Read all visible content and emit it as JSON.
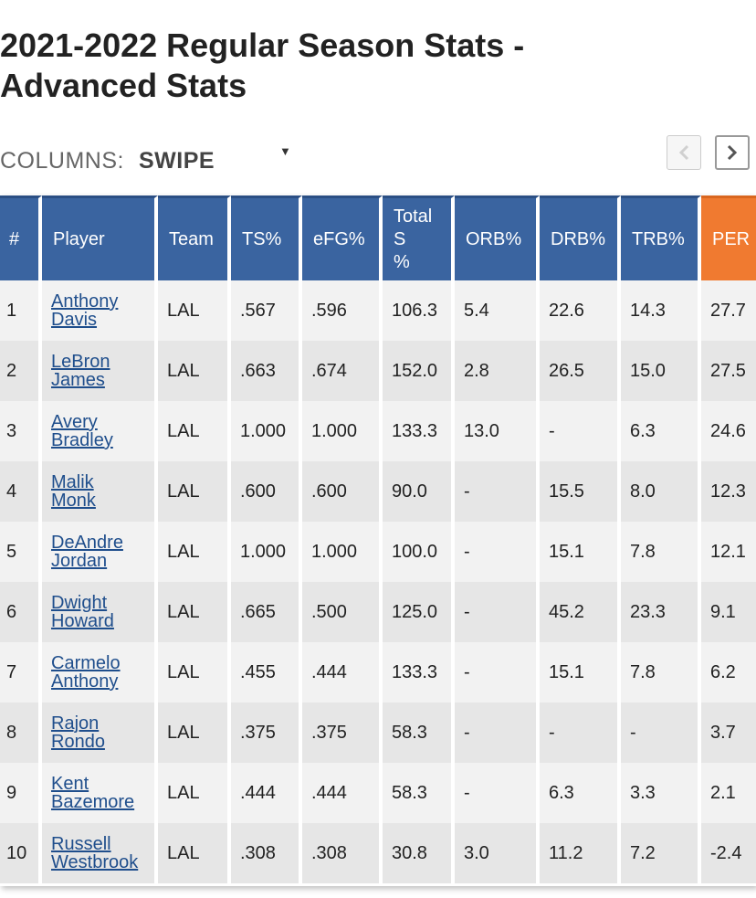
{
  "page": {
    "title_line1": "2021-2022 Regular Season Stats -",
    "title_line2": "Advanced Stats"
  },
  "columns_control": {
    "label": "COLUMNS:",
    "selected": "SWIPE",
    "caret": "▼"
  },
  "nav": {
    "prev_icon": "chevron-left-icon",
    "next_icon": "chevron-right-icon"
  },
  "colors": {
    "header_bg": "#3a64a0",
    "sorted_header_bg": "#f07a30",
    "link": "#1f4e8c"
  },
  "table": {
    "headers": [
      {
        "label": "#"
      },
      {
        "label": "Player"
      },
      {
        "label": "Team"
      },
      {
        "label": "TS%"
      },
      {
        "label": "eFG%"
      },
      {
        "label": "Total S %"
      },
      {
        "label": "ORB%"
      },
      {
        "label": "DRB%"
      },
      {
        "label": "TRB%"
      },
      {
        "label": "PER"
      }
    ],
    "rows": [
      {
        "rank": "1",
        "first": "Anthony",
        "last": "Davis",
        "team": "LAL",
        "ts": ".567",
        "efg": ".596",
        "total_s": "106.3",
        "orb": "5.4",
        "drb": "22.6",
        "trb": "14.3",
        "per": "27.7"
      },
      {
        "rank": "2",
        "first": "LeBron",
        "last": "James",
        "team": "LAL",
        "ts": ".663",
        "efg": ".674",
        "total_s": "152.0",
        "orb": "2.8",
        "drb": "26.5",
        "trb": "15.0",
        "per": "27.5"
      },
      {
        "rank": "3",
        "first": "Avery",
        "last": "Bradley",
        "team": "LAL",
        "ts": "1.000",
        "efg": "1.000",
        "total_s": "133.3",
        "orb": "13.0",
        "drb": "-",
        "trb": "6.3",
        "per": "24.6"
      },
      {
        "rank": "4",
        "first": "Malik",
        "last": "Monk",
        "team": "LAL",
        "ts": ".600",
        "efg": ".600",
        "total_s": "90.0",
        "orb": "-",
        "drb": "15.5",
        "trb": "8.0",
        "per": "12.3"
      },
      {
        "rank": "5",
        "first": "DeAndre",
        "last": "Jordan",
        "team": "LAL",
        "ts": "1.000",
        "efg": "1.000",
        "total_s": "100.0",
        "orb": "-",
        "drb": "15.1",
        "trb": "7.8",
        "per": "12.1"
      },
      {
        "rank": "6",
        "first": "Dwight",
        "last": "Howard",
        "team": "LAL",
        "ts": ".665",
        "efg": ".500",
        "total_s": "125.0",
        "orb": "-",
        "drb": "45.2",
        "trb": "23.3",
        "per": "9.1"
      },
      {
        "rank": "7",
        "first": "Carmelo",
        "last": "Anthony",
        "team": "LAL",
        "ts": ".455",
        "efg": ".444",
        "total_s": "133.3",
        "orb": "-",
        "drb": "15.1",
        "trb": "7.8",
        "per": "6.2"
      },
      {
        "rank": "8",
        "first": "Rajon",
        "last": "Rondo",
        "team": "LAL",
        "ts": ".375",
        "efg": ".375",
        "total_s": "58.3",
        "orb": "-",
        "drb": "-",
        "trb": "-",
        "per": "3.7"
      },
      {
        "rank": "9",
        "first": "Kent",
        "last": "Bazemore",
        "team": "LAL",
        "ts": ".444",
        "efg": ".444",
        "total_s": "58.3",
        "orb": "-",
        "drb": "6.3",
        "trb": "3.3",
        "per": "2.1"
      },
      {
        "rank": "10",
        "first": "Russell",
        "last": "Westbrook",
        "team": "LAL",
        "ts": ".308",
        "efg": ".308",
        "total_s": "30.8",
        "orb": "3.0",
        "drb": "11.2",
        "trb": "7.2",
        "per": "-2.4"
      }
    ]
  }
}
